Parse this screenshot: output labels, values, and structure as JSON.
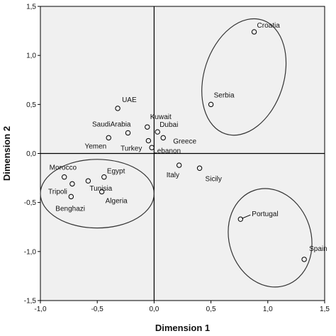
{
  "chart_data": {
    "type": "scatter",
    "xlabel": "Dimension 1",
    "ylabel": "Dimension 2",
    "xlim": [
      -1.0,
      1.5
    ],
    "ylim": [
      -1.5,
      1.5
    ],
    "xticks": [
      "-1,0",
      "-0,5",
      "0,0",
      "0,5",
      "1,0",
      "1,5"
    ],
    "yticks": [
      "1,5",
      "1,0",
      "0,5",
      "0,0",
      "-0,5",
      "-1,0",
      "-1,5"
    ],
    "xtick_values": [
      -1.0,
      -0.5,
      0.0,
      0.5,
      1.0,
      1.5
    ],
    "ytick_values": [
      1.5,
      1.0,
      0.5,
      0.0,
      -0.5,
      -1.0,
      -1.5
    ],
    "reference_lines": {
      "x": 0,
      "y": 0
    },
    "points": [
      {
        "label": "Croatia",
        "x": 0.88,
        "y": 1.24
      },
      {
        "label": "Serbia",
        "x": 0.5,
        "y": 0.5
      },
      {
        "label": "UAE",
        "x": -0.32,
        "y": 0.46
      },
      {
        "label": "Kuwait",
        "x": -0.06,
        "y": 0.27
      },
      {
        "label": "SaudiArabia",
        "x": -0.23,
        "y": 0.21
      },
      {
        "label": "Dubai",
        "x": 0.03,
        "y": 0.22
      },
      {
        "label": "Greece",
        "x": 0.08,
        "y": 0.16
      },
      {
        "label": "Yemen",
        "x": -0.4,
        "y": 0.16
      },
      {
        "label": "Turkey",
        "x": -0.05,
        "y": 0.13
      },
      {
        "label": "Lebanon",
        "x": -0.02,
        "y": 0.06
      },
      {
        "label": "Italy",
        "x": 0.22,
        "y": -0.12
      },
      {
        "label": "Sicily",
        "x": 0.4,
        "y": -0.15
      },
      {
        "label": "Egypt",
        "x": -0.44,
        "y": -0.24
      },
      {
        "label": "Morocco",
        "x": -0.79,
        "y": -0.24
      },
      {
        "label": "Tunisia",
        "x": -0.58,
        "y": -0.28
      },
      {
        "label": "Tripoli",
        "x": -0.72,
        "y": -0.31
      },
      {
        "label": "Algeria",
        "x": -0.46,
        "y": -0.39
      },
      {
        "label": "Benghazi",
        "x": -0.73,
        "y": -0.44
      },
      {
        "label": "Portugal",
        "x": 0.76,
        "y": -0.67
      },
      {
        "label": "Spain",
        "x": 1.32,
        "y": -1.08
      }
    ],
    "clusters": [
      {
        "members": [
          "Croatia",
          "Serbia"
        ],
        "cx": 0.79,
        "cy": 0.78,
        "rx": 0.35,
        "ry": 0.61,
        "rotation": 18
      },
      {
        "members": [
          "Egypt",
          "Morocco",
          "Tunisia",
          "Tripoli",
          "Algeria",
          "Benghazi"
        ],
        "cx": -0.5,
        "cy": -0.41,
        "rx": 0.5,
        "ry": 0.35,
        "rotation": 0
      },
      {
        "members": [
          "Portugal",
          "Spain"
        ],
        "cx": 1.02,
        "cy": -0.86,
        "rx": 0.36,
        "ry": 0.51,
        "rotation": -18
      }
    ]
  }
}
